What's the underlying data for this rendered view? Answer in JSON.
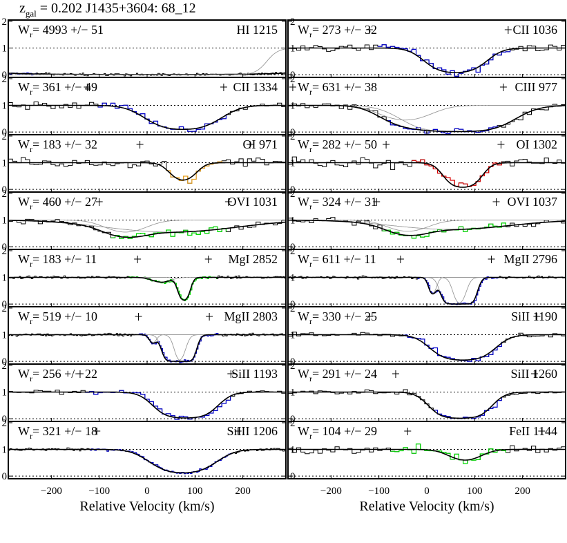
{
  "header": {
    "z_symbol": "z",
    "z_subscript": "gal",
    "z_rest": " = 0.202  J1435+3604: 68_12"
  },
  "chart_data": {
    "type": "line",
    "xlim": [
      -290,
      290
    ],
    "ylim": [
      -0.1,
      2.05
    ],
    "x_ticks": [
      -200,
      -100,
      0,
      100,
      200
    ],
    "x_tick_labels": [
      "−200",
      "−100",
      "0",
      "100",
      "200"
    ],
    "y_ticks": [
      0,
      1,
      2
    ],
    "y_tick_labels": [
      "0",
      "1",
      "2"
    ],
    "xlabel": "Relative Velocity (km/s)",
    "continuum_level": 1.0,
    "grid": "dotted lines at 0 and 1",
    "colors": {
      "data": "#000000",
      "fit": "#000000",
      "component": "#999999",
      "blue": "#0000cc",
      "orange": "#e8a020",
      "red": "#dd0000",
      "green": "#00dd00"
    },
    "panels": [
      {
        "ion": "HI 1215",
        "w_label": "Wr= 4993 +/−   51",
        "W": 4993,
        "err": 51,
        "highlight_color": "blue",
        "highlight_range": [
          -290,
          -230
        ],
        "noise": 0.03,
        "comps": [
          {
            "v": 0,
            "depth": 1.0,
            "width": 260
          }
        ],
        "ticks": []
      },
      {
        "ion": "CII 1036",
        "w_label": "Wr=  273 +/−   32",
        "W": 273,
        "err": 32,
        "highlight_color": "blue",
        "highlight_range": [
          -110,
          175
        ],
        "noise": 0.09,
        "comps": [
          {
            "v": 60,
            "depth": 0.92,
            "width": 40
          }
        ],
        "ticks": [
          -120,
          170
        ]
      },
      {
        "ion": "CII 1334",
        "w_label": "Wr=  361 +/−   49",
        "W": 361,
        "err": 49,
        "highlight_color": "blue",
        "highlight_range": [
          -110,
          170
        ],
        "noise": 0.09,
        "comps": [
          {
            "v": 75,
            "depth": 0.9,
            "width": 50
          }
        ],
        "ticks": [
          -125,
          160
        ]
      },
      {
        "ion": "CIII 977",
        "w_label": "Wr=  631 +/−   38",
        "W": 631,
        "err": 38,
        "highlight_color": "blue",
        "highlight_range": [
          -90,
          155
        ],
        "noise": 0.08,
        "comps": [
          {
            "v": -45,
            "depth": 0.55,
            "width": 45
          },
          {
            "v": 65,
            "depth": 0.98,
            "width": 65
          }
        ],
        "ticks": [
          -280,
          160
        ]
      },
      {
        "ion": "OI 971",
        "w_label": "Wr=  183 +/−   32",
        "W": 183,
        "err": 32,
        "highlight_color": "orange",
        "highlight_range": [
          35,
          165
        ],
        "noise": 0.13,
        "comps": [
          {
            "v": 75,
            "depth": 0.65,
            "width": 22
          }
        ],
        "ticks": [
          -15,
          215
        ]
      },
      {
        "ion": "OI 1302",
        "w_label": "Wr=  282 +/−   50",
        "W": 282,
        "err": 50,
        "highlight_color": "red",
        "highlight_range": [
          -35,
          165
        ],
        "noise": 0.14,
        "comps": [
          {
            "v": 75,
            "depth": 0.92,
            "width": 25
          }
        ],
        "ticks": [
          -85,
          155
        ]
      },
      {
        "ion": "OVI 1031",
        "w_label": "Wr=  460 +/−   27",
        "W": 460,
        "err": 27,
        "highlight_color": "green",
        "highlight_range": [
          -80,
          170
        ],
        "noise": 0.09,
        "comps": [
          {
            "v": -45,
            "depth": 0.45,
            "width": 38
          },
          {
            "v": 50,
            "depth": 0.45,
            "width": 120
          }
        ],
        "ticks": [
          -100,
          170
        ]
      },
      {
        "ion": "OVI 1037",
        "w_label": "Wr=  324 +/−   31",
        "W": 324,
        "err": 31,
        "highlight_color": "green",
        "highlight_range": [
          -100,
          170
        ],
        "noise": 0.09,
        "comps": [
          {
            "v": -40,
            "depth": 0.42,
            "width": 38
          },
          {
            "v": 50,
            "depth": 0.35,
            "width": 110
          }
        ],
        "ticks": [
          -105,
          145
        ]
      },
      {
        "ion": "MgI 2852",
        "w_label": "Wr=  183 +/−   11",
        "W": 183,
        "err": 11,
        "highlight_color": "green",
        "highlight_range": [
          -40,
          145
        ],
        "noise": 0.035,
        "comps": [
          {
            "v": 30,
            "depth": 0.18,
            "width": 18
          },
          {
            "v": 77,
            "depth": 0.85,
            "width": 9
          }
        ],
        "ticks": [
          -20,
          128
        ]
      },
      {
        "ion": "MgII 2796",
        "w_label": "Wr=  611 +/−   11",
        "W": 611,
        "err": 11,
        "highlight_color": "blue",
        "highlight_range": [
          -20,
          150
        ],
        "noise": 0.035,
        "comps": [
          {
            "v": 12,
            "depth": 0.6,
            "width": 7
          },
          {
            "v": 55,
            "depth": 1.0,
            "width": 14
          },
          {
            "v": 80,
            "depth": 1.0,
            "width": 13
          }
        ],
        "ticks": [
          -55,
          135
        ]
      },
      {
        "ion": "MgII 2803",
        "w_label": "Wr=  519 +/−   10",
        "W": 519,
        "err": 10,
        "highlight_color": "blue",
        "highlight_range": [
          -20,
          150
        ],
        "noise": 0.035,
        "comps": [
          {
            "v": 12,
            "depth": 0.3,
            "width": 7
          },
          {
            "v": 55,
            "depth": 1.0,
            "width": 13
          },
          {
            "v": 80,
            "depth": 1.0,
            "width": 12
          }
        ],
        "ticks": [
          -18,
          130
        ]
      },
      {
        "ion": "SiII 1190",
        "w_label": "Wr=  330 +/−   25",
        "W": 330,
        "err": 25,
        "highlight_color": "blue",
        "highlight_range": [
          -55,
          165
        ],
        "noise": 0.07,
        "comps": [
          {
            "v": 75,
            "depth": 0.95,
            "width": 40
          }
        ],
        "ticks": [
          -120,
          230
        ]
      },
      {
        "ion": "SiII 1193",
        "w_label": "Wr=  256 +/−   22",
        "W": 256,
        "err": 22,
        "highlight_color": "blue",
        "highlight_range": [
          -130,
          175
        ],
        "noise": 0.05,
        "comps": [
          {
            "v": 80,
            "depth": 0.97,
            "width": 38
          }
        ],
        "ticks": [
          -140,
          175
        ]
      },
      {
        "ion": "SiII 1260",
        "w_label": "Wr=  291 +/−   24",
        "W": 291,
        "err": 24,
        "highlight_color": "blue",
        "highlight_range": [
          5,
          165
        ],
        "noise": 0.06,
        "comps": [
          {
            "v": 70,
            "depth": 0.98,
            "width": 36
          }
        ],
        "ticks": [
          -65,
          225
        ]
      },
      {
        "ion": "SiIII 1206",
        "w_label": "Wr=  321 +/−   18",
        "W": 321,
        "err": 18,
        "highlight_color": "blue",
        "highlight_range": [
          -120,
          180
        ],
        "noise": 0.04,
        "comps": [
          {
            "v": 75,
            "depth": 0.88,
            "width": 45
          }
        ],
        "ticks": [
          -105,
          190
        ]
      },
      {
        "ion": "FeII 1144",
        "w_label": "Wr=  104 +/−   29",
        "W": 104,
        "err": 29,
        "highlight_color": "green",
        "highlight_range": [
          -80,
          170
        ],
        "noise": 0.11,
        "comps": [
          {
            "v": 80,
            "depth": 0.4,
            "width": 30
          }
        ],
        "ticks": [
          -40,
          240
        ]
      }
    ]
  }
}
